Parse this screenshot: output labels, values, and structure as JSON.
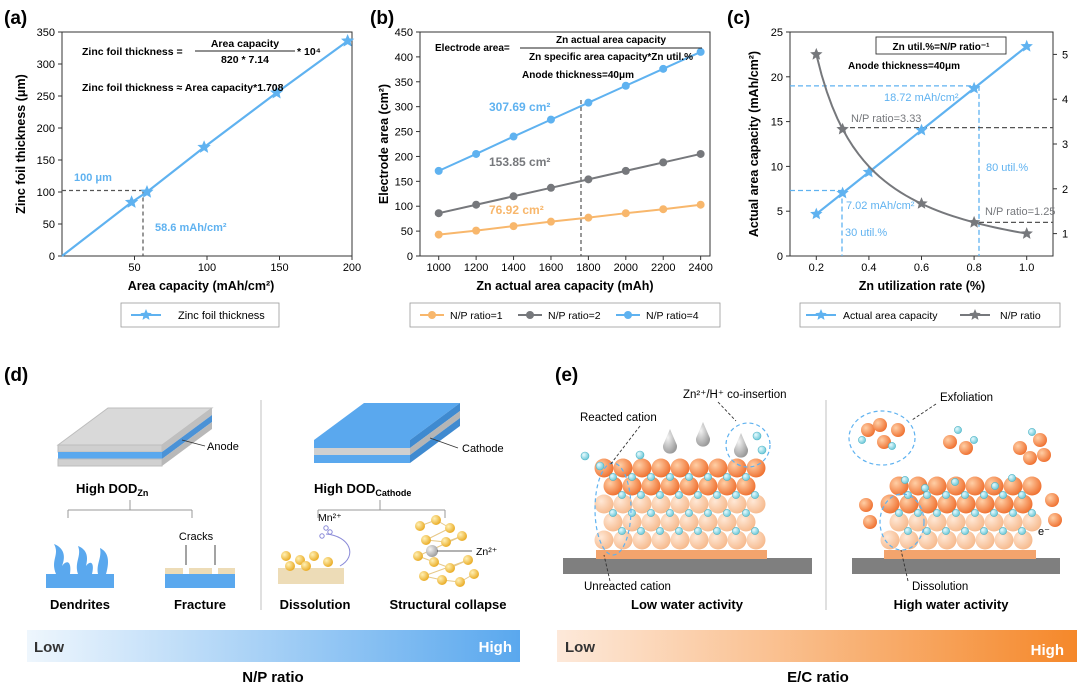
{
  "panels": {
    "a": "(a)",
    "b": "(b)",
    "c": "(c)",
    "d": "(d)",
    "e": "(e)"
  },
  "colors": {
    "blue": "#5fb2f0",
    "gray": "#76787c",
    "orange": "#f8b76c",
    "grad_blue_start": "#eef6fd",
    "grad_blue_end": "#5aa8ee",
    "grad_orange_start": "#fde9da",
    "grad_orange_end": "#f5882a"
  },
  "chart_data": [
    {
      "id": "a",
      "type": "line",
      "xlabel": "Area capacity (mAh/cm²)",
      "ylabel": "Zinc foil thickness (μm)",
      "xlim": [
        0,
        200
      ],
      "ylim": [
        0,
        350
      ],
      "xticks": [
        "50",
        "100",
        "150",
        "200"
      ],
      "yticks": [
        "0",
        "50",
        "100",
        "150",
        "200",
        "250",
        "300",
        "350"
      ],
      "series": [
        {
          "name": "Zinc foil thickness",
          "x": [
            0,
            48,
            58.6,
            98,
            148,
            197
          ],
          "y": [
            0,
            84,
            100,
            170,
            255,
            336
          ]
        }
      ],
      "formula": {
        "lhs": "Zinc foil  thickness =",
        "numerator": "Area capacity",
        "denominator": "820 * 7.14",
        "suffix": "* 10⁴",
        "line2": "Zinc foil  thickness ≈ Area capacity*1.708"
      },
      "annotations": {
        "y_mark": "100 μm",
        "x_mark": "58.6 mAh/cm²"
      }
    },
    {
      "id": "b",
      "type": "line",
      "xlabel": "Zn actual area capacity (mAh)",
      "ylabel": "Electrode area (cm²)",
      "xlim": [
        900,
        2450
      ],
      "ylim": [
        0,
        450
      ],
      "xticks": [
        "1000",
        "1200",
        "1400",
        "1600",
        "1800",
        "2000",
        "2200",
        "2400"
      ],
      "yticks": [
        "0",
        "50",
        "100",
        "150",
        "200",
        "250",
        "300",
        "350",
        "400",
        "450"
      ],
      "x": [
        1000,
        1200,
        1400,
        1600,
        1800,
        2000,
        2200,
        2400
      ],
      "series": [
        {
          "name": "N/P ratio=1",
          "values": [
            43,
            51,
            60,
            69,
            77,
            86,
            94,
            103
          ]
        },
        {
          "name": "N/P ratio=2",
          "values": [
            86,
            103,
            120,
            137,
            154,
            171,
            188,
            205
          ]
        },
        {
          "name": "N/P ratio=4",
          "values": [
            171,
            205,
            240,
            274,
            308,
            342,
            376,
            410
          ]
        }
      ],
      "formula": {
        "lhs": "Electrode area=",
        "numerator": "Zn actual area capacity",
        "denominator": "Zn specific area capacity*Zn util.%",
        "line2": "Anode thickness=40μm"
      },
      "annotations": [
        "307.69 cm²",
        "153.85 cm²",
        "76.92 cm²"
      ]
    },
    {
      "id": "c",
      "type": "line",
      "xlabel": "Zn utilization rate (%)",
      "ylabel": "Actual area capacity (mAh/cm²)",
      "xlim": [
        0.1,
        1.1
      ],
      "ylim_left": [
        0,
        25
      ],
      "ylim_right": [
        0.5,
        5.5
      ],
      "xticks": [
        "0.2",
        "0.4",
        "0.6",
        "0.8",
        "1.0"
      ],
      "yticks_left": [
        "0",
        "5",
        "10",
        "15",
        "20",
        "25"
      ],
      "yticks_right": [
        "1",
        "2",
        "3",
        "4",
        "5"
      ],
      "series": [
        {
          "name": "Actual area capacity",
          "x": [
            0.2,
            0.3,
            0.4,
            0.6,
            0.8,
            1.0
          ],
          "y": [
            4.68,
            7.02,
            9.36,
            14.04,
            18.72,
            23.4
          ]
        },
        {
          "name": "N/P ratio",
          "x": [
            0.2,
            0.3,
            0.6,
            0.8,
            1.0
          ],
          "y": [
            5.0,
            3.33,
            1.67,
            1.25,
            1.0
          ]
        }
      ],
      "box": "Zn util.%=N/P ratio⁻¹",
      "note": "Anode thickness=40μm",
      "annotations": [
        "18.72 mAh/cm²",
        "N/P ratio=3.33",
        "80 util.%",
        "7.02 mAh/cm²",
        "N/P ratio=1.25",
        "30 util.%"
      ]
    }
  ],
  "panel_d": {
    "anode": "Anode",
    "cathode": "Cathode",
    "high_dod_zn": "High DOD",
    "high_dod_zn_sub": "Zn",
    "high_dod_cathode": "High DOD",
    "high_dod_cathode_sub": "Cathode",
    "cracks": "Cracks",
    "mn": "Mn²⁺",
    "zn": "Zn²⁺",
    "dendrites": "Dendrites",
    "fracture": "Fracture",
    "dissolution": "Dissolution",
    "structural_collapse": "Structural collapse",
    "low": "Low",
    "high": "High",
    "axis": "N/P ratio"
  },
  "panel_e": {
    "co_insertion": "Zn²⁺/H⁺ co-insertion",
    "reacted_cation": "Reacted cation",
    "unreacted_cation": "Unreacted cation",
    "low_water": "Low water activity",
    "exfoliation": "Exfoliation",
    "dissolution": "Dissolution",
    "electron": "e⁻",
    "high_water": "High water activity",
    "low": "Low",
    "high": "High",
    "axis": "E/C ratio"
  }
}
